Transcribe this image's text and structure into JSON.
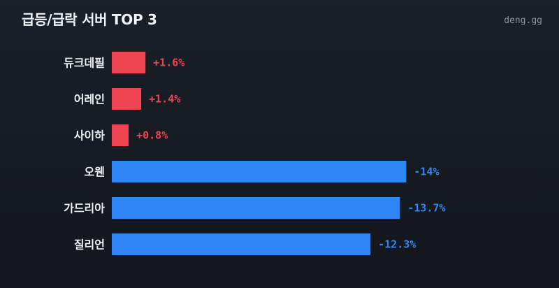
{
  "header": {
    "title": "급등/급락 서버 TOP 3",
    "brand": "deng.gg"
  },
  "colors": {
    "up": "#ef4452",
    "down": "#2f86f6",
    "background": "#181c23",
    "text": "#eef0f3"
  },
  "chart_data": {
    "type": "bar",
    "orientation": "horizontal",
    "title": "급등/급락 서버 TOP 3",
    "categories": [
      "듀크데필",
      "어레인",
      "사이하",
      "오웬",
      "가드리아",
      "질리언"
    ],
    "values": [
      1.6,
      1.4,
      0.8,
      -14,
      -13.7,
      -12.3
    ],
    "labels": [
      "+1.6%",
      "+1.4%",
      "+0.8%",
      "-14%",
      "-13.7%",
      "-12.3%"
    ],
    "unit": "%",
    "grid": false,
    "legend": "none"
  }
}
